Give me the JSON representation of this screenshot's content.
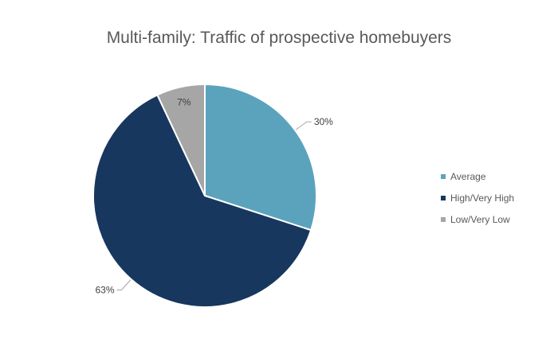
{
  "chart_data": {
    "type": "pie",
    "title": "Multi-family: Traffic of prospective homebuyers",
    "categories": [
      "Average",
      "High/Very High",
      "Low/Very Low"
    ],
    "values": [
      30,
      63,
      7
    ],
    "labels": [
      "30%",
      "63%",
      "7%"
    ],
    "colors": [
      "#5BA3BC",
      "#17375E",
      "#A6A6A6"
    ],
    "legend_position": "right"
  }
}
